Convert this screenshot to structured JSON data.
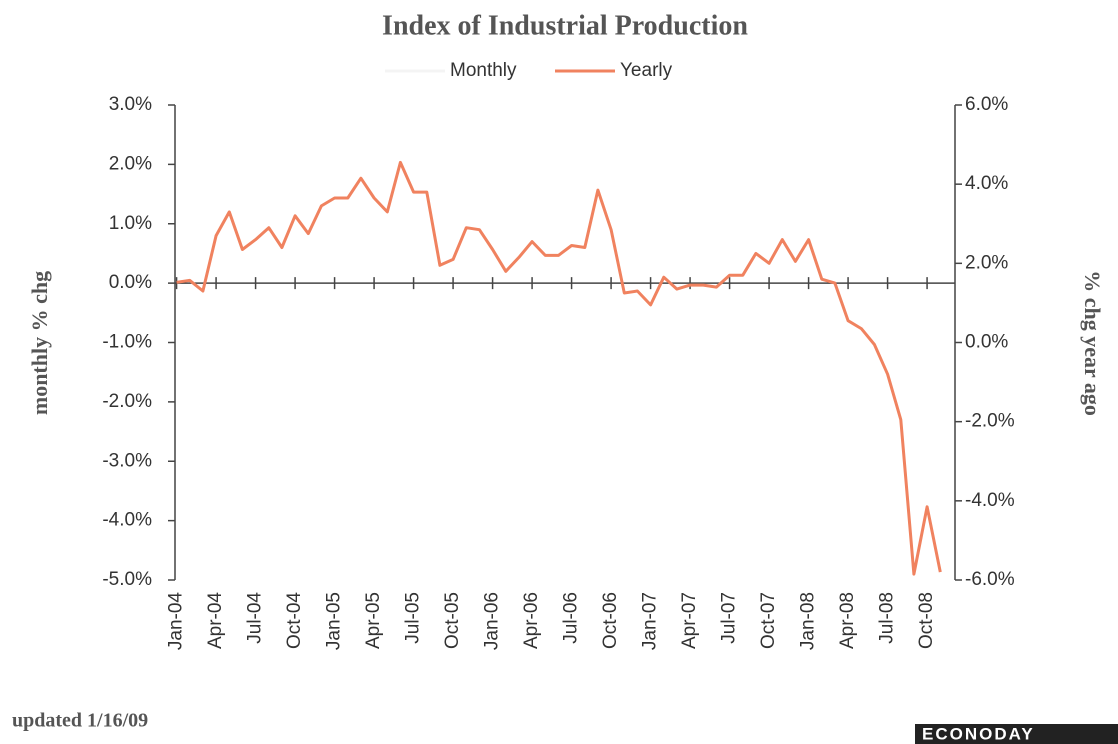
{
  "chart_data": {
    "type": "line",
    "title": "Index of Industrial Production",
    "y_label": "monthly % chg",
    "y2_label": "% chg year ago",
    "footnote": "updated 1/16/09",
    "source": "ECONODAY",
    "categories": [
      "Jan-04",
      null,
      null,
      "Apr-04",
      null,
      null,
      "Jul-04",
      null,
      null,
      "Oct-04",
      null,
      null,
      "Jan-05",
      null,
      null,
      "Apr-05",
      null,
      null,
      "Jul-05",
      null,
      null,
      "Oct-05",
      null,
      null,
      "Jan-06",
      null,
      null,
      "Apr-06",
      null,
      null,
      "Jul-06",
      null,
      null,
      "Oct-06",
      null,
      null,
      "Jan-07",
      null,
      null,
      "Apr-07",
      null,
      null,
      "Jul-07",
      null,
      null,
      "Oct-07",
      null,
      null,
      "Jan-08",
      null,
      null,
      "Apr-08",
      null,
      null,
      "Jul-08",
      null,
      null,
      "Oct-08",
      null,
      null
    ],
    "series": [
      {
        "name": "Monthly",
        "color": "#f4f4f4",
        "values": [
          null,
          null,
          null,
          null,
          null,
          null,
          null,
          null,
          null,
          null,
          null,
          null,
          null,
          null,
          null,
          null,
          null,
          null,
          null,
          null,
          null,
          null,
          null,
          null,
          null,
          null,
          null,
          null,
          null,
          null,
          null,
          null,
          null,
          null,
          null,
          null,
          null,
          null,
          null,
          null,
          null,
          null,
          null,
          null,
          null,
          null,
          null,
          null,
          null,
          null,
          null,
          null,
          null,
          null,
          null,
          null,
          null,
          null,
          null,
          null
        ]
      },
      {
        "name": "Yearly",
        "color": "#f0825f",
        "axis": "y2",
        "values": [
          1.52,
          1.57,
          1.3,
          2.7,
          3.3,
          2.35,
          2.6,
          2.9,
          2.4,
          3.2,
          2.75,
          3.45,
          3.65,
          3.65,
          4.15,
          3.65,
          3.3,
          4.55,
          3.8,
          3.8,
          1.95,
          2.1,
          2.9,
          2.85,
          2.35,
          1.8,
          2.15,
          2.55,
          2.2,
          2.2,
          2.45,
          2.4,
          3.85,
          2.85,
          1.25,
          1.3,
          0.95,
          1.65,
          1.35,
          1.45,
          1.45,
          1.4,
          1.7,
          1.7,
          2.25,
          2.0,
          2.6,
          2.05,
          2.6,
          1.6,
          1.5,
          0.55,
          0.35,
          -0.05,
          -0.8,
          -1.95,
          -5.85,
          -4.15,
          -5.8,
          null
        ]
      }
    ],
    "ylim": [
      -5,
      3
    ],
    "yticks": [
      {
        "value": -5,
        "label": "-5.0%"
      },
      {
        "value": -4,
        "label": "-4.0%"
      },
      {
        "value": -3,
        "label": "-3.0%"
      },
      {
        "value": -2,
        "label": "-2.0%"
      },
      {
        "value": -1,
        "label": "-1.0%"
      },
      {
        "value": 0,
        "label": "0.0%"
      },
      {
        "value": 1,
        "label": "1.0%"
      },
      {
        "value": 2,
        "label": "2.0%"
      },
      {
        "value": 3,
        "label": "3.0%"
      }
    ],
    "y2lim": [
      -6,
      6
    ],
    "y2ticks": [
      {
        "value": -6,
        "label": "-6.0%"
      },
      {
        "value": -4,
        "label": "-4.0%"
      },
      {
        "value": -2,
        "label": "-2.0%"
      },
      {
        "value": 0,
        "label": "0.0%"
      },
      {
        "value": 2,
        "label": "2.0%"
      },
      {
        "value": 4,
        "label": "4.0%"
      },
      {
        "value": 6,
        "label": "6.0%"
      }
    ],
    "grid": false
  }
}
